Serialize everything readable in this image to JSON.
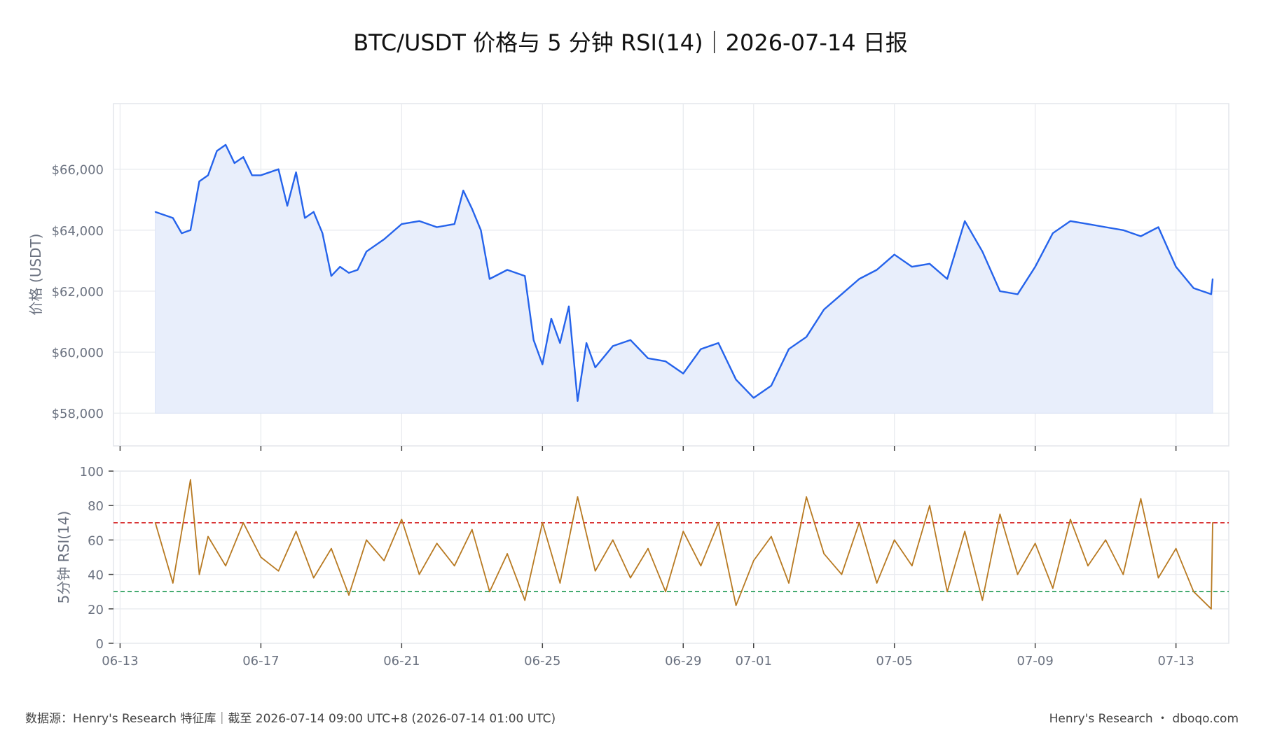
{
  "title": "BTC/USDT 价格与 5 分钟 RSI(14)｜2026-07-14 日报",
  "footer": {
    "source": "数据源：Henry's Research 特征库｜截至 2026-07-14 09:00 UTC+8 (2026-07-14 01:00 UTC)",
    "brand": "Henry's Research ・ dboqo.com"
  },
  "colors": {
    "price_line": "#2563eb",
    "price_fill": "#e8eefb",
    "rsi_line": "#b87a22",
    "overbought": "#d62728",
    "oversold": "#1a9850",
    "grid": "#e9ebef",
    "axis_text": "#6b7280"
  },
  "chart_data": [
    {
      "type": "area",
      "ylabel": "价格 (USDT)",
      "xlabel": "",
      "x_ticks": [
        "06-13",
        "06-17",
        "06-21",
        "06-25",
        "06-29",
        "07-01",
        "07-05",
        "07-09",
        "07-13"
      ],
      "y_ticks": [
        "$58,000",
        "$60,000",
        "$62,000",
        "$64,000",
        "$66,000"
      ],
      "ylim": [
        57500,
        67600
      ],
      "xlim": [
        "2026-06-12T19:30",
        "2026-07-14T12:00"
      ],
      "grid": true,
      "series": [
        {
          "x": [
            "2026-06-14T00:00",
            "2026-06-14T12:00",
            "2026-06-14T18:00",
            "2026-06-15T00:00",
            "2026-06-15T06:00",
            "2026-06-15T12:00",
            "2026-06-15T18:00",
            "2026-06-16T00:00",
            "2026-06-16T06:00",
            "2026-06-16T12:00",
            "2026-06-16T18:00",
            "2026-06-17T00:00",
            "2026-06-17T12:00",
            "2026-06-17T18:00",
            "2026-06-18T00:00",
            "2026-06-18T06:00",
            "2026-06-18T12:00",
            "2026-06-18T18:00",
            "2026-06-19T00:00",
            "2026-06-19T06:00",
            "2026-06-19T12:00",
            "2026-06-19T18:00",
            "2026-06-20T00:00",
            "2026-06-20T12:00",
            "2026-06-21T00:00",
            "2026-06-21T12:00",
            "2026-06-22T00:00",
            "2026-06-22T12:00",
            "2026-06-22T18:00",
            "2026-06-23T00:00",
            "2026-06-23T06:00",
            "2026-06-23T12:00",
            "2026-06-24T00:00",
            "2026-06-24T12:00",
            "2026-06-24T18:00",
            "2026-06-25T00:00",
            "2026-06-25T06:00",
            "2026-06-25T12:00",
            "2026-06-25T18:00",
            "2026-06-26T00:00",
            "2026-06-26T06:00",
            "2026-06-26T12:00",
            "2026-06-27T00:00",
            "2026-06-27T12:00",
            "2026-06-28T00:00",
            "2026-06-28T12:00",
            "2026-06-29T00:00",
            "2026-06-29T12:00",
            "2026-06-30T00:00",
            "2026-06-30T12:00",
            "2026-07-01T00:00",
            "2026-07-01T12:00",
            "2026-07-02T00:00",
            "2026-07-02T12:00",
            "2026-07-03T00:00",
            "2026-07-03T12:00",
            "2026-07-04T00:00",
            "2026-07-04T12:00",
            "2026-07-05T00:00",
            "2026-07-05T12:00",
            "2026-07-06T00:00",
            "2026-07-06T12:00",
            "2026-07-07T00:00",
            "2026-07-07T12:00",
            "2026-07-08T00:00",
            "2026-07-08T12:00",
            "2026-07-09T00:00",
            "2026-07-09T12:00",
            "2026-07-10T00:00",
            "2026-07-10T12:00",
            "2026-07-11T00:00",
            "2026-07-11T12:00",
            "2026-07-12T00:00",
            "2026-07-12T12:00",
            "2026-07-13T00:00",
            "2026-07-13T12:00",
            "2026-07-14T00:00",
            "2026-07-14T01:00"
          ],
          "values": [
            64600,
            64400,
            63900,
            64000,
            65600,
            65800,
            66600,
            66800,
            66200,
            66400,
            65800,
            65800,
            66000,
            64800,
            65900,
            64400,
            64600,
            63900,
            62500,
            62800,
            62600,
            62700,
            63300,
            63700,
            64200,
            64300,
            64100,
            64200,
            65300,
            64700,
            64000,
            62400,
            62700,
            62500,
            60400,
            59600,
            61100,
            60300,
            61500,
            58400,
            60300,
            59500,
            60200,
            60400,
            59800,
            59700,
            59300,
            60100,
            60300,
            59100,
            58500,
            58900,
            60100,
            60500,
            61400,
            61900,
            62400,
            62700,
            63200,
            62800,
            62900,
            62400,
            64300,
            63300,
            62000,
            61900,
            62800,
            63900,
            64300,
            64200,
            64100,
            64000,
            63800,
            64100,
            62800,
            62100,
            61900,
            62400
          ]
        }
      ]
    },
    {
      "type": "line",
      "ylabel": "5分钟 RSI(14)",
      "xlabel": "",
      "x_ticks": [
        "06-13",
        "06-17",
        "06-21",
        "06-25",
        "06-29",
        "07-01",
        "07-05",
        "07-09",
        "07-13"
      ],
      "y_ticks": [
        "0",
        "20",
        "40",
        "60",
        "80",
        "100"
      ],
      "ylim": [
        0,
        100
      ],
      "grid": true,
      "reference_lines": [
        {
          "name": "overbought",
          "value": 70
        },
        {
          "name": "oversold",
          "value": 30
        }
      ],
      "series": [
        {
          "note": "",
          "x": [
            "2026-06-14T00:00",
            "2026-06-14T12:00",
            "2026-06-15T00:00",
            "2026-06-15T06:00",
            "2026-06-15T12:00",
            "2026-06-16T00:00",
            "2026-06-16T12:00",
            "2026-06-17T00:00",
            "2026-06-17T12:00",
            "2026-06-18T00:00",
            "2026-06-18T12:00",
            "2026-06-19T00:00",
            "2026-06-19T12:00",
            "2026-06-20T00:00",
            "2026-06-20T12:00",
            "2026-06-21T00:00",
            "2026-06-21T12:00",
            "2026-06-22T00:00",
            "2026-06-22T12:00",
            "2026-06-23T00:00",
            "2026-06-23T12:00",
            "2026-06-24T00:00",
            "2026-06-24T12:00",
            "2026-06-25T00:00",
            "2026-06-25T12:00",
            "2026-06-26T00:00",
            "2026-06-26T12:00",
            "2026-06-27T00:00",
            "2026-06-27T12:00",
            "2026-06-28T00:00",
            "2026-06-28T12:00",
            "2026-06-29T00:00",
            "2026-06-29T12:00",
            "2026-06-30T00:00",
            "2026-06-30T12:00",
            "2026-07-01T00:00",
            "2026-07-01T12:00",
            "2026-07-02T00:00",
            "2026-07-02T12:00",
            "2026-07-03T00:00",
            "2026-07-03T12:00",
            "2026-07-04T00:00",
            "2026-07-04T12:00",
            "2026-07-05T00:00",
            "2026-07-05T12:00",
            "2026-07-06T00:00",
            "2026-07-06T12:00",
            "2026-07-07T00:00",
            "2026-07-07T12:00",
            "2026-07-08T00:00",
            "2026-07-08T12:00",
            "2026-07-09T00:00",
            "2026-07-09T12:00",
            "2026-07-10T00:00",
            "2026-07-10T12:00",
            "2026-07-11T00:00",
            "2026-07-11T12:00",
            "2026-07-12T00:00",
            "2026-07-12T12:00",
            "2026-07-13T00:00",
            "2026-07-13T12:00",
            "2026-07-14T00:00",
            "2026-07-14T01:00"
          ],
          "values": [
            70,
            35,
            95,
            40,
            62,
            45,
            70,
            50,
            42,
            65,
            38,
            55,
            28,
            60,
            48,
            72,
            40,
            58,
            45,
            66,
            30,
            52,
            25,
            70,
            35,
            85,
            42,
            60,
            38,
            55,
            30,
            65,
            45,
            70,
            22,
            48,
            62,
            35,
            85,
            52,
            40,
            70,
            35,
            60,
            45,
            80,
            30,
            65,
            25,
            75,
            40,
            58,
            32,
            72,
            45,
            60,
            40,
            84,
            38,
            55,
            30,
            20,
            70
          ]
        }
      ]
    }
  ]
}
